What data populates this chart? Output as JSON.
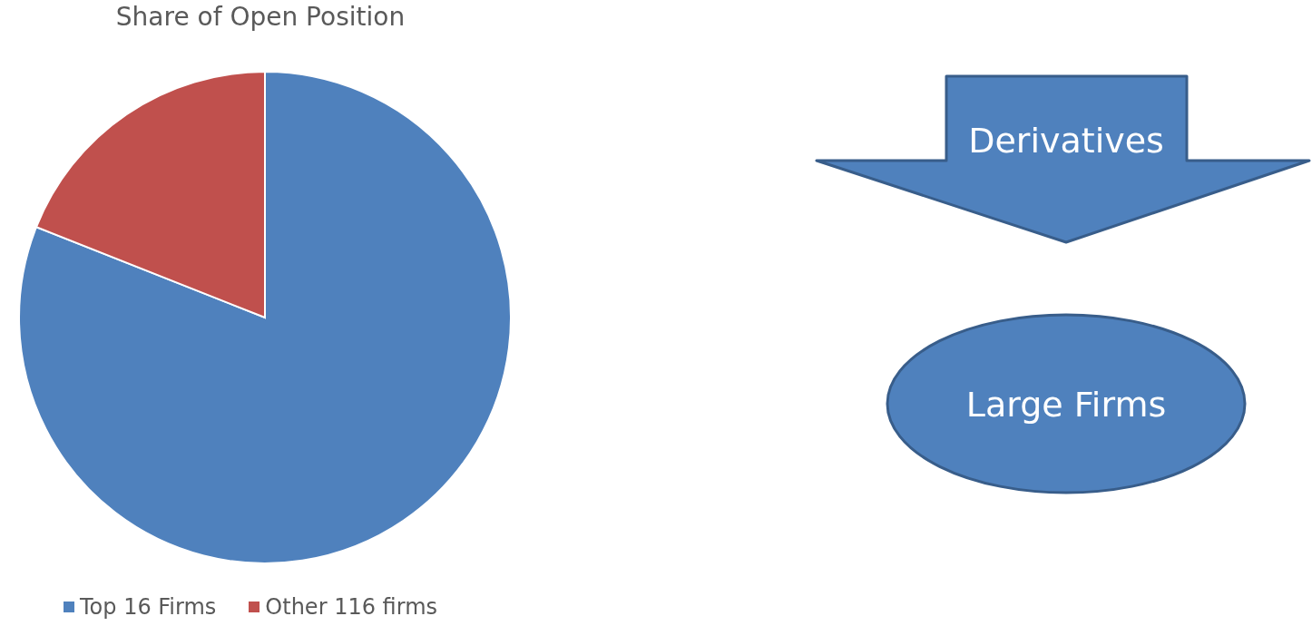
{
  "chart_data": {
    "type": "pie",
    "title": "Share of Open Position",
    "categories": [
      "Top 16 Firms",
      "Other 116 firms"
    ],
    "values": [
      81,
      19
    ],
    "colors": [
      "#4f81bd",
      "#c0504d"
    ],
    "legend": "bottom",
    "annotations": [
      "Derivatives",
      "Large Firms"
    ]
  }
}
